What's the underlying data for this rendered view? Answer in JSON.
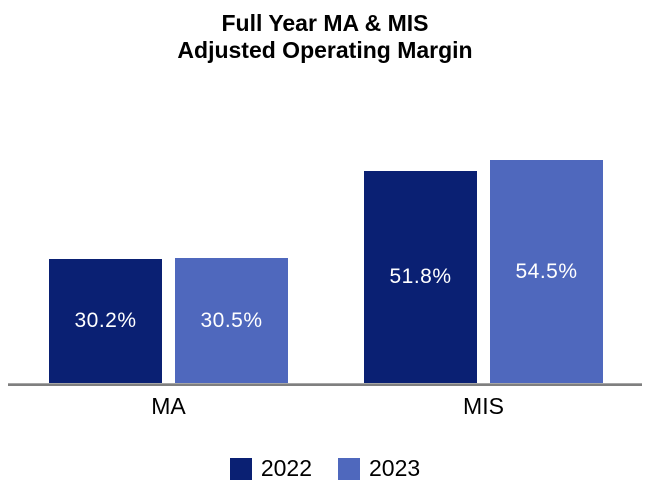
{
  "title": {
    "line1": "Full Year MA & MIS",
    "line2": "Adjusted Operating Margin"
  },
  "colors": {
    "series_2022": "#0A2073",
    "series_2023": "#4F68BD",
    "axis_line": "#7F7F7F",
    "value_label_text": "#FFFFFF",
    "title_text": "#000000"
  },
  "chart_data": {
    "type": "bar",
    "title": "Full Year MA & MIS Adjusted Operating Margin",
    "categories": [
      "MA",
      "MIS"
    ],
    "series": [
      {
        "name": "2022",
        "color": "#0A2073",
        "values": [
          30.2,
          51.8
        ],
        "labels": [
          "30.2%",
          "51.8%"
        ]
      },
      {
        "name": "2023",
        "color": "#4F68BD",
        "values": [
          30.5,
          54.5
        ],
        "labels": [
          "30.5%",
          "54.5%"
        ]
      }
    ],
    "xlabel": "",
    "ylabel": "",
    "ylim": [
      0,
      60
    ],
    "grid": false,
    "axis_ticks_visible": false,
    "value_labels_position": "center-inside",
    "legend_position": "bottom"
  },
  "legend": {
    "items": [
      {
        "label": "2022",
        "color": "#0A2073"
      },
      {
        "label": "2023",
        "color": "#4F68BD"
      }
    ]
  }
}
